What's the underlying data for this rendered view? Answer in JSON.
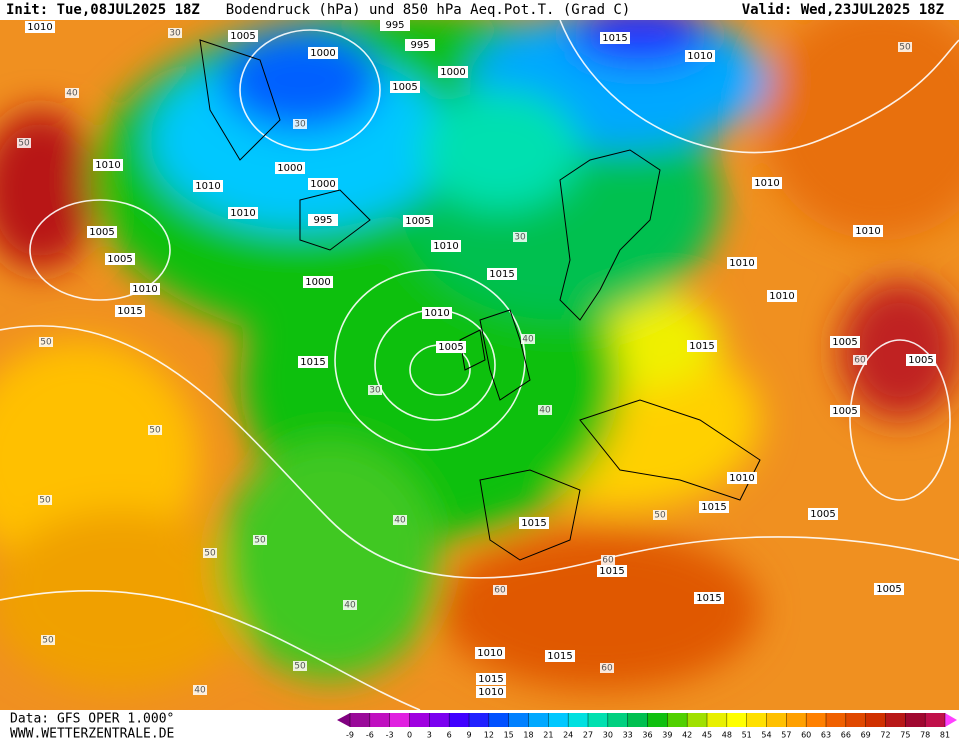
{
  "header": {
    "init": "Init: Tue,08JUL2025 18Z",
    "title": "Bodendruck (hPa) und 850 hPa Aeq.Pot.T. (Grad C)",
    "valid": "Valid: Wed,23JUL2025 18Z"
  },
  "footer": {
    "data": "Data: GFS OPER 1.000°",
    "site": "WWW.WETTERZENTRALE.DE"
  },
  "isobar_labels": [
    "1010",
    "1005",
    "1000",
    "995",
    "995",
    "1000",
    "1005",
    "1015",
    "1010",
    "1010",
    "1010",
    "1000",
    "1000",
    "1010",
    "1005",
    "1005",
    "1010",
    "1015",
    "1000",
    "995",
    "1005",
    "1010",
    "1015",
    "1010",
    "1005",
    "1015",
    "1010",
    "1010",
    "1010",
    "1010",
    "1015",
    "1005",
    "1005",
    "1005",
    "1010",
    "1015",
    "1005",
    "1015",
    "1015",
    "1015",
    "1005",
    "1010",
    "1015",
    "1015",
    "1010"
  ],
  "theta_labels": [
    "30",
    "40",
    "50",
    "30",
    "30",
    "40",
    "30",
    "50",
    "50",
    "50",
    "50",
    "50",
    "40",
    "40",
    "40",
    "50",
    "60",
    "60",
    "50",
    "40",
    "50",
    "60",
    "50",
    "60"
  ],
  "colorbar": {
    "ticks": [
      -9,
      -6,
      -3,
      0,
      3,
      6,
      9,
      12,
      15,
      18,
      21,
      24,
      27,
      30,
      33,
      36,
      39,
      42,
      45,
      48,
      51,
      54,
      57,
      60,
      63,
      66,
      69,
      72,
      75,
      78,
      81
    ],
    "colors": [
      "#800080",
      "#9a0a9a",
      "#c010c0",
      "#e020e0",
      "#a000e0",
      "#7a00f0",
      "#4000ff",
      "#2020ff",
      "#0050ff",
      "#0080ff",
      "#00a8ff",
      "#00c8ff",
      "#00e0e0",
      "#00e0b0",
      "#00d080",
      "#00c050",
      "#10c010",
      "#50d000",
      "#a0e000",
      "#e8f000",
      "#ffff00",
      "#ffe000",
      "#ffc000",
      "#ffa000",
      "#ff8000",
      "#f06000",
      "#e04800",
      "#d03000",
      "#b81818",
      "#a00830",
      "#c0104a",
      "#ff40ff"
    ]
  }
}
